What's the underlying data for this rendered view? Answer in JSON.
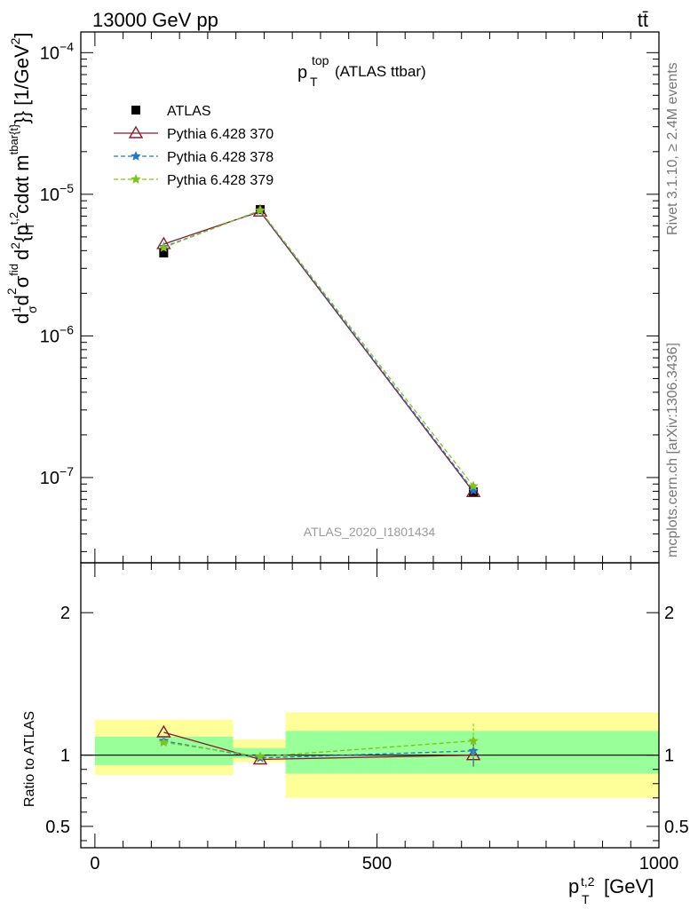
{
  "header": {
    "process": "13000 GeV pp",
    "channel": "tt̄"
  },
  "side_labels": {
    "rivet": "Rivet 3.1.10, ≥ 2.4M events",
    "mcplots": "mcplots.cern.ch [arXiv:1306.3436]"
  },
  "chart_data": [
    {
      "type": "line",
      "title": "p_T^top (ATLAS ttbar)",
      "title_main": "p",
      "title_sub": "T",
      "title_sup": "top",
      "title_suffix": "(ATLAS ttbar)",
      "analysis_id": "ATLAS_2020_I1801434",
      "ylabel": "d²σ^{fid} / d² {p_T^{t,2} cdαt m^{tbar{t}}} [1/GeV²]",
      "ylabel_parts": {
        "frac": "d",
        "one": "1",
        "sigma": "σ",
        "d2sigma": "d",
        "sup2": "2",
        "fid": "fid",
        "den": "d",
        "brace": "{p",
        "ptsup": "t,2",
        "ptsub": "T",
        "cdat": "cdαt m",
        "msup": "tbar{t}",
        "unit": "}} [1/GeV",
        "unit_end": "]"
      },
      "yscale": "log",
      "ylim": [
        2.5e-08,
        0.00014
      ],
      "xlim": [
        -25,
        1000
      ],
      "y_ticks": [
        {
          "value": 0.0001,
          "base": "10",
          "exp": "−4"
        },
        {
          "value": 1e-05,
          "base": "10",
          "exp": "−5"
        },
        {
          "value": 1e-06,
          "base": "10",
          "exp": "−6"
        },
        {
          "value": 1e-07,
          "base": "10",
          "exp": "−7"
        }
      ],
      "x": [
        122,
        293,
        671
      ],
      "series": [
        {
          "name": "ATLAS",
          "color": "#000000",
          "marker": "square",
          "line": "none",
          "values": [
            3.85e-06,
            7.8e-06,
            7.9e-08
          ]
        },
        {
          "name": "Pythia 6.428 370",
          "color": "#8b1a2b",
          "marker": "triangle-open",
          "line": "solid",
          "values": [
            4.45e-06,
            7.55e-06,
            7.9e-08
          ]
        },
        {
          "name": "Pythia 6.428 378",
          "color": "#1f77d4",
          "marker": "star",
          "line": "dashed",
          "values": [
            4.25e-06,
            7.65e-06,
            8.1e-08
          ]
        },
        {
          "name": "Pythia 6.428 379",
          "color": "#7fc31c",
          "marker": "star",
          "line": "dashed",
          "values": [
            4.2e-06,
            7.7e-06,
            8.7e-08
          ]
        }
      ],
      "legend_placement": "top-left"
    },
    {
      "type": "line",
      "ylabel": "Ratio to ATLAS",
      "xlabel": "p_T^{t,2} [GeV]",
      "xlabel_main": "p",
      "xlabel_sup": "t,2",
      "xlabel_sub": "T",
      "xlabel_unit": "[GeV]",
      "ylim": [
        0.35,
        2.35
      ],
      "xlim": [
        -25,
        1000
      ],
      "x_ticks": [
        "0",
        "500",
        "1000"
      ],
      "y_ticks": [
        "0.5",
        "1",
        "2"
      ],
      "x_tick_values": [
        0,
        500,
        1000
      ],
      "y_tick_values": [
        0.5,
        1,
        2
      ],
      "reference": 1,
      "bins": [
        {
          "x_low": 0,
          "x_high": 245,
          "stat_low": 0.93,
          "stat_high": 1.13,
          "syst_low": 0.86,
          "syst_high": 1.25
        },
        {
          "x_low": 245,
          "x_high": 338,
          "stat_low": 0.98,
          "stat_high": 1.05,
          "syst_low": 0.95,
          "syst_high": 1.11
        },
        {
          "x_low": 338,
          "x_high": 1000,
          "stat_low": 0.87,
          "stat_high": 1.17,
          "syst_low": 0.7,
          "syst_high": 1.3
        }
      ],
      "x": [
        122,
        293,
        671
      ],
      "series": [
        {
          "name": "Pythia 6.428 370",
          "color": "#8b1a2b",
          "marker": "triangle-open",
          "line": "solid",
          "values": [
            1.16,
            0.97,
            1.0
          ],
          "errors": [
            0.0,
            0.0,
            0.08
          ]
        },
        {
          "name": "Pythia 6.428 378",
          "color": "#1f77d4",
          "marker": "star",
          "line": "dashed",
          "values": [
            1.1,
            0.98,
            1.03
          ],
          "errors": [
            0.0,
            0.0,
            0.1
          ]
        },
        {
          "name": "Pythia 6.428 379",
          "color": "#7fc31c",
          "marker": "star",
          "line": "dashed",
          "values": [
            1.09,
            0.99,
            1.1
          ],
          "errors": [
            0.0,
            0.0,
            0.12
          ]
        }
      ]
    }
  ]
}
